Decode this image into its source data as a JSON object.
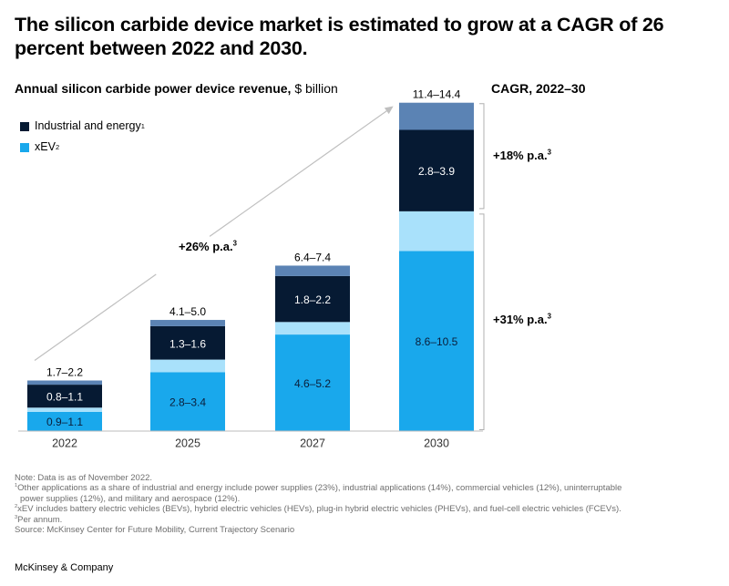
{
  "title": "The silicon carbide device market is estimated to grow at a CAGR of 26 percent between 2022 and 2030.",
  "subtitle_bold": "Annual silicon carbide power device revenue,",
  "subtitle_unit": " $ billion",
  "cagr_header": "CAGR, 2022–30",
  "legend": {
    "industrial": "Industrial and energy",
    "industrial_note": "1",
    "xev": "xEV",
    "xev_note": "2"
  },
  "colors": {
    "xev": "#19a8ec",
    "xev_light": "#a9e1fb",
    "industrial": "#061a33",
    "other": "#5b83b4",
    "text": "#000000",
    "grid_line": "#d9d9d9"
  },
  "arrow_label": "+26% p.a.",
  "arrow_note": "3",
  "cagr_labels": [
    {
      "text": "+18% p.a.",
      "note": "3"
    },
    {
      "text": "+31% p.a.",
      "note": "3"
    }
  ],
  "chart_data": {
    "type": "bar",
    "stacked": true,
    "categories": [
      "2022",
      "2025",
      "2027",
      "2030"
    ],
    "totals": [
      "1.7–2.2",
      "4.1–5.0",
      "6.4–7.4",
      "11.4–14.4"
    ],
    "series": [
      {
        "name": "xEV",
        "range_labels": [
          "0.9–1.1",
          "2.8–3.4",
          "4.6–5.2",
          "8.6–10.5"
        ],
        "low": [
          0.9,
          2.8,
          4.6,
          8.6
        ],
        "band": [
          0.2,
          0.6,
          0.6,
          1.9
        ]
      },
      {
        "name": "Industrial and energy",
        "range_labels": [
          "0.8–1.1",
          "1.3–1.6",
          "1.8–2.2",
          "2.8–3.9"
        ],
        "value": [
          1.1,
          1.6,
          2.2,
          3.9
        ]
      },
      {
        "other_applications": [
          0.2,
          0.3,
          0.5,
          1.3
        ]
      }
    ],
    "ylim": [
      0,
      14.4
    ],
    "grid": false,
    "legend_position": "top-left"
  },
  "footnotes": {
    "note": "Note: Data is as of November 2022.",
    "fn1_a": "Other applications as a share of industrial and energy include power supplies (23%), industrial applications (14%), commercial vehicles (12%), uninterruptable",
    "fn1_b": "power supplies (12%), and military and aerospace (12%).",
    "fn2": "xEV includes battery electric vehicles (BEVs), hybrid electric vehicles (HEVs), plug-in hybrid electric vehicles (PHEVs), and fuel-cell electric vehicles (FCEVs).",
    "fn3": "Per annum.",
    "source": "Source: McKinsey Center for Future Mobility, Current Trajectory Scenario"
  },
  "brand": "McKinsey & Company"
}
